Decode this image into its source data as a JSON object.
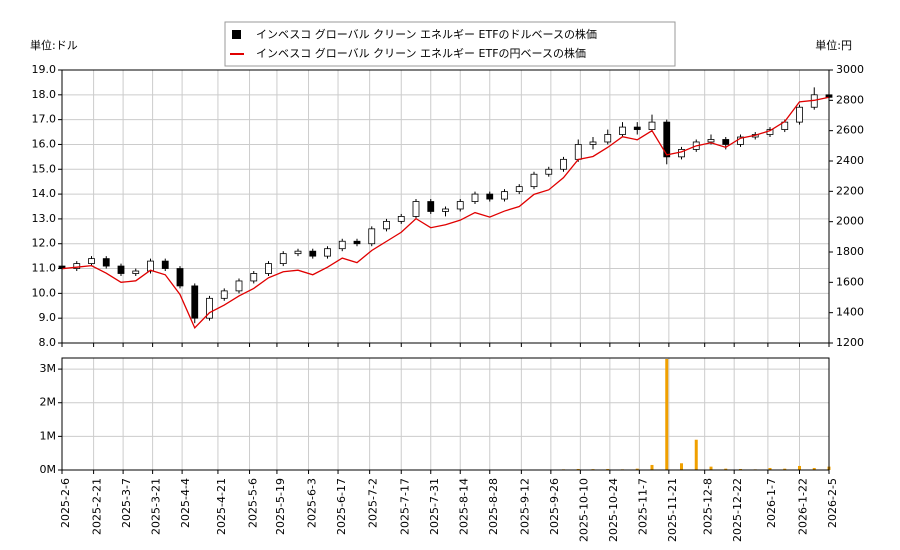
{
  "chart_data": [
    {
      "type": "candlestick",
      "y_unit": "単位:ドル",
      "y2_unit": "単位:円",
      "x": [
        "2025-2-6",
        "2025-2-13",
        "2025-2-20",
        "2025-2-27",
        "2025-3-6",
        "2025-3-13",
        "2025-3-20",
        "2025-3-27",
        "2025-4-3",
        "2025-4-10",
        "2025-4-17",
        "2025-4-24",
        "2025-5-1",
        "2025-5-8",
        "2025-5-15",
        "2025-5-22",
        "2025-5-29",
        "2025-6-5",
        "2025-6-12",
        "2025-6-19",
        "2025-6-26",
        "2025-7-3",
        "2025-7-10",
        "2025-7-17",
        "2025-7-24",
        "2025-7-31",
        "2025-8-7",
        "2025-8-14",
        "2025-8-21",
        "2025-8-28",
        "2025-9-4",
        "2025-9-11",
        "2025-9-18",
        "2025-9-25",
        "2025-10-2",
        "2025-10-9",
        "2025-10-16",
        "2025-10-23",
        "2025-10-30",
        "2025-11-6",
        "2025-11-13",
        "2025-11-20",
        "2025-11-27",
        "2025-12-4",
        "2025-12-11",
        "2025-12-18",
        "2025-12-25",
        "2026-1-1",
        "2026-1-8",
        "2026-1-15",
        "2026-1-22",
        "2026-1-29",
        "2026-2-5"
      ],
      "candles": {
        "name": "インベスコ グローバル クリーン エネルギー ETFのドルベースの株価",
        "up_color": "#ffffff",
        "down_color": "#000000",
        "open": [
          11.1,
          11.0,
          11.2,
          11.4,
          11.1,
          10.8,
          10.9,
          11.3,
          11.0,
          10.3,
          9.0,
          9.8,
          10.1,
          10.5,
          10.8,
          11.2,
          11.6,
          11.7,
          11.5,
          11.8,
          12.1,
          12.0,
          12.6,
          12.9,
          13.1,
          13.7,
          13.3,
          13.4,
          13.7,
          14.0,
          13.8,
          14.1,
          14.3,
          14.8,
          15.0,
          15.4,
          16.0,
          16.1,
          16.4,
          16.7,
          16.6,
          16.9,
          15.5,
          15.8,
          16.1,
          16.2,
          16.0,
          16.3,
          16.4,
          16.6,
          16.9,
          17.5,
          18.0
        ],
        "high": [
          11.2,
          11.3,
          11.5,
          11.5,
          11.2,
          11.0,
          11.4,
          11.4,
          11.1,
          10.4,
          9.9,
          10.2,
          10.6,
          10.9,
          11.3,
          11.7,
          11.8,
          11.8,
          11.9,
          12.2,
          12.2,
          12.7,
          13.0,
          13.2,
          13.8,
          13.8,
          13.5,
          13.8,
          14.1,
          14.1,
          14.2,
          14.4,
          14.9,
          15.1,
          15.5,
          16.2,
          16.3,
          16.6,
          16.9,
          16.9,
          17.2,
          17.0,
          15.9,
          16.2,
          16.4,
          16.3,
          16.4,
          16.5,
          16.7,
          17.0,
          17.6,
          18.3,
          18.2
        ],
        "low": [
          10.9,
          10.9,
          11.1,
          11.0,
          10.7,
          10.7,
          10.8,
          10.9,
          10.2,
          8.8,
          8.9,
          9.7,
          10.0,
          10.4,
          10.7,
          11.1,
          11.5,
          11.4,
          11.4,
          11.7,
          11.9,
          11.9,
          12.5,
          12.8,
          13.0,
          13.2,
          13.1,
          13.3,
          13.6,
          13.7,
          13.7,
          14.0,
          14.2,
          14.7,
          14.9,
          15.3,
          15.8,
          16.0,
          16.3,
          16.4,
          16.5,
          15.2,
          15.4,
          15.7,
          16.0,
          15.8,
          15.9,
          16.2,
          16.3,
          16.5,
          16.8,
          17.4,
          17.6
        ],
        "close": [
          11.0,
          11.2,
          11.4,
          11.1,
          10.8,
          10.9,
          11.3,
          11.0,
          10.3,
          9.0,
          9.8,
          10.1,
          10.5,
          10.8,
          11.2,
          11.6,
          11.7,
          11.5,
          11.8,
          12.1,
          12.0,
          12.6,
          12.9,
          13.1,
          13.7,
          13.3,
          13.4,
          13.7,
          14.0,
          13.8,
          14.1,
          14.3,
          14.8,
          15.0,
          15.4,
          16.0,
          16.1,
          16.4,
          16.7,
          16.6,
          16.9,
          15.5,
          15.8,
          16.1,
          16.2,
          16.0,
          16.3,
          16.4,
          16.6,
          16.9,
          17.5,
          18.0,
          17.9
        ]
      },
      "series": [
        {
          "name": "インベスコ グローバル クリーン エネルギー ETFの円ベースの株価",
          "color": "#e00000",
          "axis": "y2",
          "values": [
            1690,
            1700,
            1710,
            1660,
            1600,
            1610,
            1680,
            1650,
            1520,
            1300,
            1400,
            1450,
            1510,
            1560,
            1630,
            1670,
            1680,
            1650,
            1700,
            1760,
            1730,
            1810,
            1870,
            1930,
            2020,
            1960,
            1980,
            2010,
            2060,
            2030,
            2070,
            2100,
            2180,
            2210,
            2290,
            2410,
            2430,
            2490,
            2560,
            2540,
            2600,
            2440,
            2460,
            2500,
            2520,
            2490,
            2550,
            2570,
            2600,
            2660,
            2790,
            2800,
            2820
          ]
        }
      ],
      "ylim": [
        8,
        19
      ],
      "yticks": [
        {
          "value": 8,
          "label": "8.0"
        },
        {
          "value": 9,
          "label": "9.0"
        },
        {
          "value": 10,
          "label": "10.0"
        },
        {
          "value": 11,
          "label": "11.0"
        },
        {
          "value": 12,
          "label": "12.0"
        },
        {
          "value": 13,
          "label": "13.0"
        },
        {
          "value": 14,
          "label": "14.0"
        },
        {
          "value": 15,
          "label": "15.0"
        },
        {
          "value": 16,
          "label": "16.0"
        },
        {
          "value": 17,
          "label": "17.0"
        },
        {
          "value": 18,
          "label": "18.0"
        },
        {
          "value": 19,
          "label": "19.0"
        }
      ],
      "y2lim": [
        1200,
        3000
      ],
      "y2ticks": [
        1200,
        1400,
        1600,
        1800,
        2000,
        2200,
        2400,
        2600,
        2800,
        3000
      ],
      "grid": true
    },
    {
      "type": "bar",
      "color": "#f0a000",
      "values": [
        0,
        0,
        0,
        0,
        0,
        0,
        0,
        0,
        0,
        0,
        0,
        0,
        0,
        0,
        0,
        0,
        0,
        0,
        0,
        0,
        0,
        0,
        0,
        0,
        0,
        0,
        0,
        0,
        0,
        0,
        0,
        0,
        0,
        0,
        20000,
        30000,
        25000,
        30000,
        20000,
        40000,
        150000,
        3300000,
        200000,
        900000,
        100000,
        40000,
        30000,
        20000,
        60000,
        40000,
        120000,
        60000,
        100000
      ],
      "ylim": [
        0,
        3330000
      ],
      "yticks": [
        {
          "value": 0,
          "label": "0M"
        },
        {
          "value": 1000000,
          "label": "1M"
        },
        {
          "value": 2000000,
          "label": "2M"
        },
        {
          "value": 3000000,
          "label": "3M"
        }
      ],
      "xlim": [
        "2025-2-6",
        "2026-2-5"
      ],
      "xticks": [
        "2025-2-6",
        "2025-2-21",
        "2025-3-7",
        "2025-3-21",
        "2025-4-4",
        "2025-4-21",
        "2025-5-6",
        "2025-5-19",
        "2025-6-3",
        "2025-6-17",
        "2025-7-2",
        "2025-7-17",
        "2025-7-31",
        "2025-8-14",
        "2025-8-28",
        "2025-9-12",
        "2025-9-26",
        "2025-10-10",
        "2025-10-24",
        "2025-11-7",
        "2025-11-21",
        "2025-12-8",
        "2025-12-22",
        "2026-1-7",
        "2026-1-22",
        "2026-2-5"
      ],
      "grid": true
    }
  ]
}
